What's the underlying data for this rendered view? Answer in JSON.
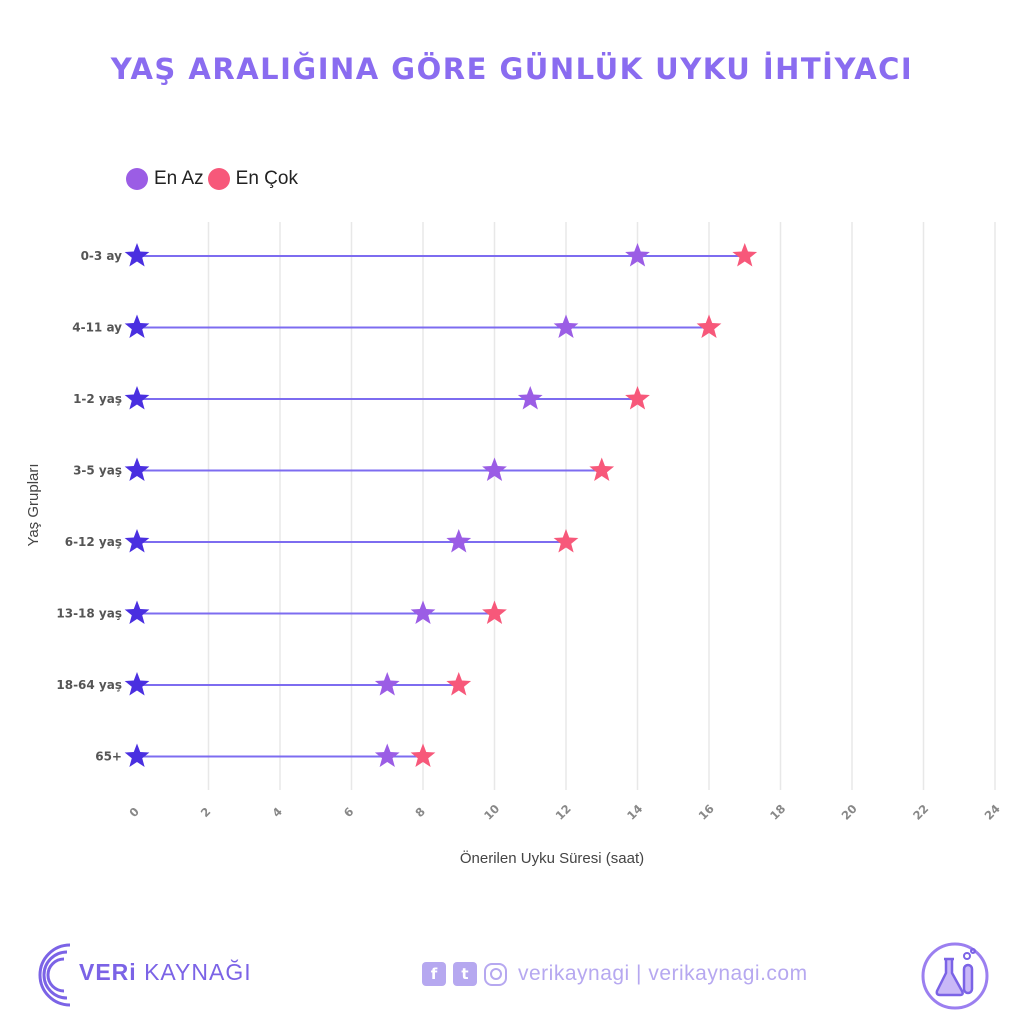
{
  "title": "YAŞ ARALIĞINA GÖRE GÜNLÜK UYKU İHTİYACI",
  "legend": [
    {
      "label": "En Az",
      "color": "#9b5de5"
    },
    {
      "label": "En Çok",
      "color": "#f7587a"
    }
  ],
  "chart_data": {
    "type": "dumbbell",
    "title": "YAŞ ARALIĞINA GÖRE GÜNLÜK UYKU İHTİYACI",
    "xlabel": "Önerilen Uyku Süresi (saat)",
    "ylabel": "Yaş Grupları",
    "xlim": [
      0,
      24
    ],
    "x_ticks": [
      "0",
      "2",
      "4",
      "6",
      "8",
      "10",
      "12",
      "14",
      "16",
      "18",
      "20",
      "22",
      "24"
    ],
    "categories": [
      "0-3 ay",
      "4-11 ay",
      "1-2 yaş",
      "3-5 yaş",
      "6-12 yaş",
      "13-18 yaş",
      "18-64 yaş",
      "65+"
    ],
    "series": [
      {
        "name": "En Az",
        "values": [
          14,
          12,
          11,
          10,
          9,
          8,
          7,
          7
        ],
        "color": "#9b5de5"
      },
      {
        "name": "En Çok",
        "values": [
          17,
          16,
          14,
          13,
          12,
          10,
          9,
          8
        ],
        "color": "#f7587a"
      }
    ],
    "baseline_color": "#4a2fe0",
    "line_color": "#7d6cf0",
    "grid": true,
    "legend_position": "top-left"
  },
  "footer": {
    "brand_prefix": "VERi",
    "brand_suffix": " KAYNAĞI",
    "handle": "verikaynagi | verikaynagi.com",
    "social_icons": [
      "facebook-icon",
      "twitter-icon",
      "instagram-icon"
    ]
  }
}
